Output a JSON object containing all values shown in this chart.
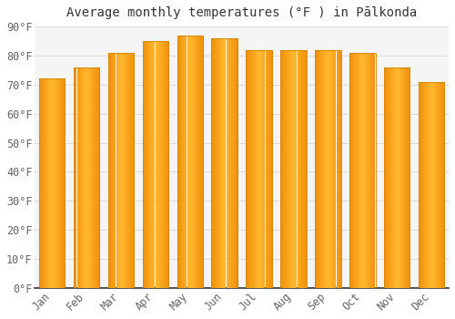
{
  "title": "Average monthly temperatures (°F ) in Pālkonda",
  "months": [
    "Jan",
    "Feb",
    "Mar",
    "Apr",
    "May",
    "Jun",
    "Jul",
    "Aug",
    "Sep",
    "Oct",
    "Nov",
    "Dec"
  ],
  "values": [
    72,
    76,
    81,
    85,
    87,
    86,
    82,
    82,
    82,
    81,
    76,
    71
  ],
  "bar_color_center": "#FFB830",
  "bar_color_edge": "#F0900A",
  "background_color": "#FFFFFF",
  "plot_bg_color": "#F5F5F5",
  "grid_color": "#DDDDDD",
  "ylim": [
    0,
    90
  ],
  "yticks": [
    0,
    10,
    20,
    30,
    40,
    50,
    60,
    70,
    80,
    90
  ],
  "ytick_labels": [
    "0°F",
    "10°F",
    "20°F",
    "30°F",
    "40°F",
    "50°F",
    "60°F",
    "70°F",
    "80°F",
    "90°F"
  ],
  "title_fontsize": 10,
  "tick_fontsize": 8.5,
  "title_color": "#333333",
  "tick_color": "#666666",
  "font_family": "monospace",
  "bar_width": 0.75,
  "spine_color": "#333333"
}
